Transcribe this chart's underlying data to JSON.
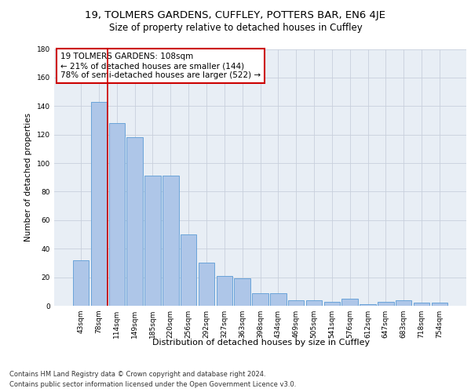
{
  "title1": "19, TOLMERS GARDENS, CUFFLEY, POTTERS BAR, EN6 4JE",
  "title2": "Size of property relative to detached houses in Cuffley",
  "xlabel": "Distribution of detached houses by size in Cuffley",
  "ylabel": "Number of detached properties",
  "categories": [
    "43sqm",
    "78sqm",
    "114sqm",
    "149sqm",
    "185sqm",
    "220sqm",
    "256sqm",
    "292sqm",
    "327sqm",
    "363sqm",
    "398sqm",
    "434sqm",
    "469sqm",
    "505sqm",
    "541sqm",
    "576sqm",
    "612sqm",
    "647sqm",
    "683sqm",
    "718sqm",
    "754sqm"
  ],
  "values": [
    32,
    143,
    128,
    118,
    91,
    91,
    50,
    30,
    21,
    19,
    9,
    9,
    4,
    4,
    3,
    5,
    1,
    3,
    4,
    2,
    2
  ],
  "bar_color": "#aec6e8",
  "bar_edge_color": "#5b9bd5",
  "vline_color": "#cc0000",
  "vline_x_index": 1,
  "annotation_text": "19 TOLMERS GARDENS: 108sqm\n← 21% of detached houses are smaller (144)\n78% of semi-detached houses are larger (522) →",
  "annotation_box_color": "#ffffff",
  "annotation_box_edge_color": "#cc0000",
  "ylim": [
    0,
    180
  ],
  "yticks": [
    0,
    20,
    40,
    60,
    80,
    100,
    120,
    140,
    160,
    180
  ],
  "grid_color": "#c8d0dc",
  "background_color": "#e8eef5",
  "footer_line1": "Contains HM Land Registry data © Crown copyright and database right 2024.",
  "footer_line2": "Contains public sector information licensed under the Open Government Licence v3.0.",
  "title1_fontsize": 9.5,
  "title2_fontsize": 8.5,
  "xlabel_fontsize": 8,
  "ylabel_fontsize": 7.5,
  "tick_fontsize": 6.5,
  "annotation_fontsize": 7.5,
  "footer_fontsize": 6
}
